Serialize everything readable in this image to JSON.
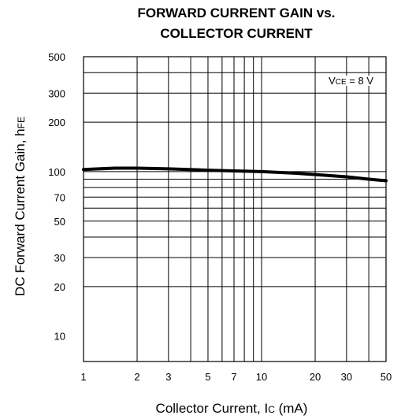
{
  "chart_data": {
    "type": "line",
    "title": [
      "FORWARD CURRENT GAIN vs.",
      "COLLECTOR CURRENT"
    ],
    "xlabel": {
      "main": "Collector Current, I",
      "sub": "C",
      "unit": " (mA)"
    },
    "ylabel": {
      "main": "DC Forward Current Gain, h",
      "sub": "FE"
    },
    "x_scale": "log",
    "y_scale": "log",
    "xlim": [
      1,
      50
    ],
    "ylim": [
      7,
      500
    ],
    "x_ticks": [
      1,
      2,
      3,
      5,
      7,
      10,
      20,
      30,
      50
    ],
    "x_tick_labels": [
      "1",
      "2",
      "3",
      "5",
      "7",
      "10",
      "20",
      "30",
      "50"
    ],
    "y_ticks": [
      10,
      20,
      30,
      50,
      70,
      100,
      200,
      300,
      500
    ],
    "y_tick_labels": [
      "10",
      "20",
      "30",
      "50",
      "70",
      "100",
      "200",
      "300",
      "500"
    ],
    "x_grid": [
      1,
      2,
      3,
      4,
      5,
      6,
      7,
      8,
      9,
      10,
      20,
      30,
      40,
      50
    ],
    "y_grid": [
      20,
      30,
      40,
      50,
      60,
      70,
      80,
      90,
      100,
      200,
      300,
      400,
      500
    ],
    "grid": true,
    "annotation": {
      "main": "V",
      "sub": "CE",
      "rest": " = 8 V"
    },
    "series": [
      {
        "x": [
          1,
          1.5,
          2,
          3,
          5,
          7,
          10,
          15,
          20,
          30,
          40,
          50
        ],
        "y": [
          103,
          105,
          105,
          104,
          102,
          101,
          100,
          98,
          96,
          93,
          90,
          88
        ]
      }
    ]
  }
}
